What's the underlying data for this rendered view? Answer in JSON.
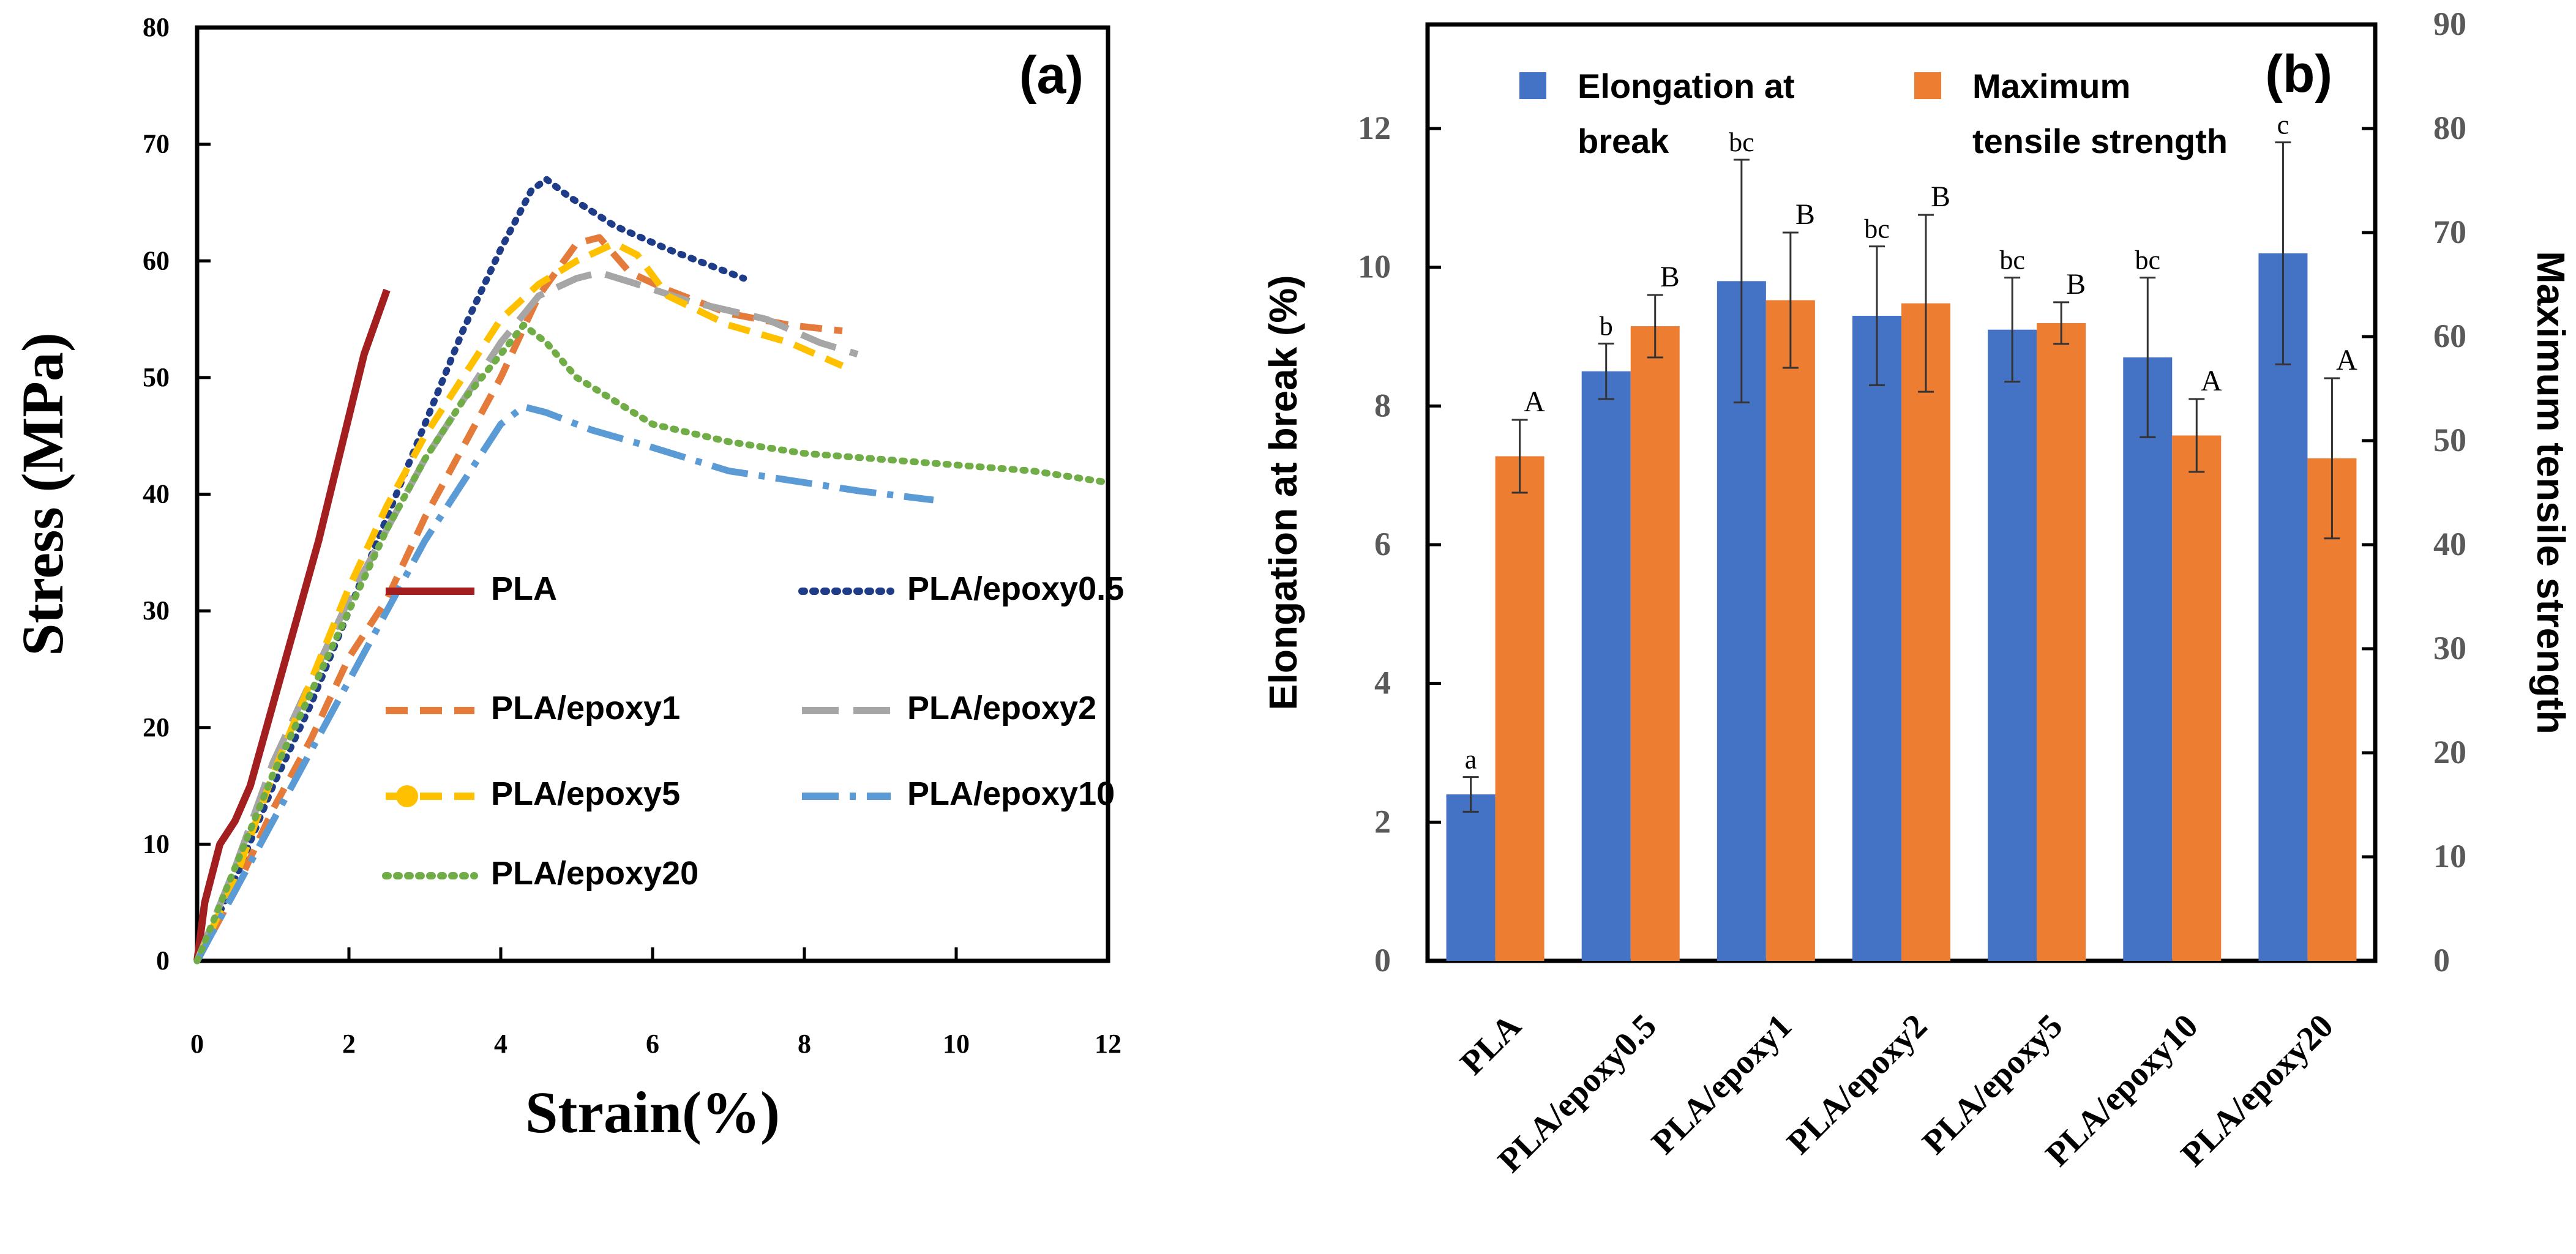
{
  "chart_data": [
    {
      "panel": "a",
      "type": "line",
      "title": "(a)",
      "xlabel": "Strain(%)",
      "ylabel": "Stress (MPa)",
      "xlim": [
        0,
        12
      ],
      "ylim": [
        0,
        80
      ],
      "xticks": [
        "0",
        "2",
        "4",
        "6",
        "8",
        "10",
        "12"
      ],
      "yticks": [
        "0",
        "10",
        "20",
        "30",
        "40",
        "50",
        "60",
        "70",
        "80"
      ],
      "series": [
        {
          "name": "PLA",
          "color": "#a31f1f",
          "dash": "solid",
          "x": [
            0,
            0.1,
            0.3,
            0.5,
            0.7,
            1.0,
            1.3,
            1.6,
            1.9,
            2.2,
            2.5
          ],
          "y": [
            0,
            5,
            10,
            12,
            15,
            22,
            29,
            36,
            44,
            52,
            57.5
          ]
        },
        {
          "name": "PLA/epoxy0.5",
          "color": "#1f3c88",
          "dash": "dot",
          "x": [
            0,
            0.5,
            1.0,
            1.5,
            2.0,
            2.5,
            3.0,
            3.5,
            4.0,
            4.4,
            4.6,
            4.9,
            5.5,
            6.2,
            6.8,
            7.2
          ],
          "y": [
            0,
            7,
            15,
            22,
            30,
            38,
            46,
            54,
            61,
            66,
            67,
            65.5,
            63,
            61,
            59.5,
            58.5
          ]
        },
        {
          "name": "PLA/epoxy1",
          "color": "#e57b3a",
          "dash": "dash",
          "x": [
            0,
            0.5,
            1.0,
            1.5,
            2.0,
            2.5,
            3.0,
            3.5,
            4.0,
            4.5,
            5.0,
            5.3,
            5.7,
            6.2,
            7.0,
            7.8,
            8.5
          ],
          "y": [
            0,
            6,
            13,
            19,
            26,
            31,
            38,
            44,
            50,
            57,
            61.5,
            62,
            59,
            57.5,
            55.5,
            54.5,
            54
          ]
        },
        {
          "name": "PLA/epoxy2",
          "color": "#a6a6a6",
          "dash": "longdash",
          "x": [
            0,
            0.5,
            1.0,
            1.5,
            2.0,
            2.5,
            3.0,
            3.5,
            4.0,
            4.5,
            5.0,
            5.3,
            5.8,
            6.5,
            7.5,
            8.2,
            8.7
          ],
          "y": [
            0,
            8,
            17,
            24,
            31,
            37,
            43,
            48,
            53,
            57,
            58.5,
            59,
            58,
            56.5,
            55,
            53,
            52
          ]
        },
        {
          "name": "PLA/epoxy5",
          "color": "#ffc000",
          "dash": "dash",
          "x": [
            0,
            0.5,
            1.0,
            1.5,
            2.0,
            2.5,
            3.0,
            3.5,
            4.0,
            4.5,
            5.0,
            5.5,
            5.8,
            6.2,
            7.0,
            7.8,
            8.5
          ],
          "y": [
            0,
            7,
            16,
            24,
            32,
            39,
            45,
            50,
            55,
            58,
            60,
            61.5,
            60.5,
            57,
            54.5,
            53,
            51
          ]
        },
        {
          "name": "PLA/epoxy10",
          "color": "#5b9bd5",
          "dash": "dashdot",
          "x": [
            0,
            0.5,
            1.0,
            1.5,
            2.0,
            2.5,
            3.0,
            3.5,
            4.0,
            4.3,
            4.6,
            5.2,
            6.0,
            7.0,
            8.0,
            8.7,
            9.7
          ],
          "y": [
            0,
            6,
            12,
            18,
            24,
            30,
            36,
            41,
            46,
            47.5,
            47,
            45.5,
            44,
            42,
            41,
            40.3,
            39.5
          ]
        },
        {
          "name": "PLA/epoxy20",
          "color": "#70ad47",
          "dash": "dot",
          "x": [
            0,
            0.5,
            1.0,
            1.5,
            2.0,
            2.5,
            3.0,
            3.5,
            4.0,
            4.3,
            4.6,
            5.0,
            5.5,
            6.0,
            7.0,
            8.0,
            9.0,
            10.0,
            11.0,
            12.0
          ],
          "y": [
            0,
            8,
            16,
            23,
            30,
            37,
            43,
            48,
            52,
            54.5,
            53,
            50,
            48,
            46,
            44.5,
            43.5,
            43,
            42.5,
            42,
            41
          ]
        }
      ],
      "legend": [
        {
          "label": "PLA",
          "color": "#a31f1f",
          "dash": "solid",
          "marker": false
        },
        {
          "label": "PLA/epoxy0.5",
          "color": "#1f3c88",
          "dash": "dot",
          "marker": false
        },
        {
          "label": "PLA/epoxy1",
          "color": "#e57b3a",
          "dash": "dash",
          "marker": false
        },
        {
          "label": "PLA/epoxy2",
          "color": "#a6a6a6",
          "dash": "longdash",
          "marker": false
        },
        {
          "label": "PLA/epoxy5",
          "color": "#ffc000",
          "dash": "dash",
          "marker": true
        },
        {
          "label": "PLA/epoxy10",
          "color": "#5b9bd5",
          "dash": "dashdot",
          "marker": false
        },
        {
          "label": "PLA/epoxy20",
          "color": "#70ad47",
          "dash": "dot",
          "marker": false
        }
      ]
    },
    {
      "panel": "b",
      "type": "bar",
      "title": "(b)",
      "ylabel": "Elongation at break (%)",
      "y2label": "Maximum tensile strength",
      "ylim": [
        0,
        13.5
      ],
      "y2lim": [
        0,
        90
      ],
      "yticks": [
        "0",
        "2",
        "4",
        "6",
        "8",
        "10",
        "12"
      ],
      "y2ticks": [
        "0",
        "10",
        "20",
        "30",
        "40",
        "50",
        "60",
        "70",
        "80",
        "90"
      ],
      "categories": [
        "PLA",
        "PLA/epoxy0.5",
        "PLA/epoxy1",
        "PLA/epoxy2",
        "PLA/epoxy5",
        "PLA/epoxy10",
        "PLA/epoxy20"
      ],
      "series": [
        {
          "name": "Elongation at break",
          "legend_lines": [
            "Elongation  at",
            "break"
          ],
          "color": "#4472c4",
          "axis": "left",
          "values": [
            2.4,
            8.5,
            9.8,
            9.3,
            9.1,
            8.7,
            10.2
          ],
          "errors": [
            0.25,
            0.4,
            1.75,
            1.0,
            0.75,
            1.15,
            1.6
          ],
          "letters": [
            "a",
            "b",
            "bc",
            "bc",
            "bc",
            "bc",
            "c"
          ]
        },
        {
          "name": "Maximum tensile strength",
          "legend_lines": [
            "Maximum",
            "tensile strength"
          ],
          "color": "#ed7d31",
          "axis": "right",
          "values": [
            48.5,
            61,
            63.5,
            63.2,
            61.3,
            50.5,
            48.3
          ],
          "errors": [
            3.5,
            3,
            6.5,
            8.5,
            2,
            3.5,
            7.7
          ],
          "letters": [
            "A",
            "B",
            "B",
            "B",
            "B",
            "A",
            "A"
          ]
        }
      ]
    }
  ]
}
